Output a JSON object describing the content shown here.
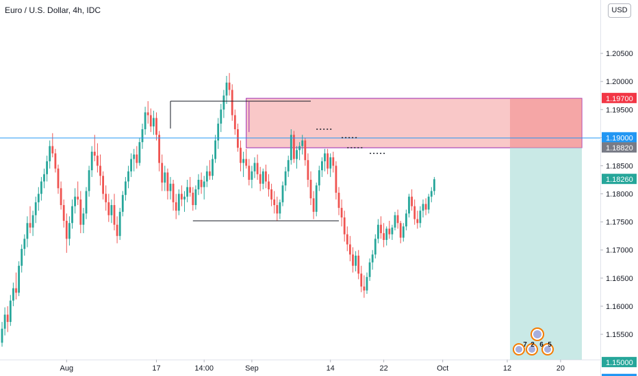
{
  "header": {
    "title": "Euro / U.S. Dollar, 4h, IDC",
    "currency": "USD"
  },
  "colors": {
    "up": "#26a69a",
    "down": "#ef5350",
    "supply_zone_fill": "#f7b3b3",
    "supply_zone_border": "#9c27b0",
    "target_zone_fill": "#b2dfdb",
    "level_line": "#2196f3",
    "last_price_badge": "#26a69a",
    "stop_badge": "#f23645",
    "entry_badge": "#787b86",
    "level_badge": "#2196f3"
  },
  "chart_data": {
    "type": "candlestick",
    "title": "Euro / U.S. Dollar, 4h, IDC",
    "ylim": [
      1.1505,
      1.2145
    ],
    "y_ticks": [
      "1.20500",
      "1.20000",
      "1.19500",
      "1.19000",
      "1.18500",
      "1.18000",
      "1.17500",
      "1.17000",
      "1.16500",
      "1.16000",
      "1.15500",
      "1.15000"
    ],
    "x_ticks": [
      {
        "label": "Aug",
        "index": 23
      },
      {
        "label": "17",
        "index": 55
      },
      {
        "label": "14:00",
        "index": 72
      },
      {
        "label": "Sep",
        "index": 89
      },
      {
        "label": "14",
        "index": 117
      },
      {
        "label": "22",
        "index": 136
      },
      {
        "label": "Oct",
        "index": 157
      },
      {
        "label": "12",
        "index": 180
      },
      {
        "label": "20",
        "index": 199
      }
    ],
    "candles_ohlc": [
      [
        1.1535,
        1.1572,
        1.1528,
        1.156
      ],
      [
        1.156,
        1.1598,
        1.1548,
        1.1585
      ],
      [
        1.1585,
        1.16,
        1.1554,
        1.1572
      ],
      [
        1.1572,
        1.162,
        1.1565,
        1.161
      ],
      [
        1.161,
        1.1642,
        1.16,
        1.1632
      ],
      [
        1.1632,
        1.166,
        1.1612,
        1.1624
      ],
      [
        1.1624,
        1.168,
        1.1618,
        1.1672
      ],
      [
        1.1672,
        1.171,
        1.166,
        1.1702
      ],
      [
        1.1702,
        1.1728,
        1.169,
        1.172
      ],
      [
        1.172,
        1.176,
        1.1705,
        1.1748
      ],
      [
        1.1748,
        1.1778,
        1.173,
        1.174
      ],
      [
        1.174,
        1.177,
        1.1725,
        1.1762
      ],
      [
        1.1762,
        1.1795,
        1.1748,
        1.1785
      ],
      [
        1.1785,
        1.1812,
        1.177,
        1.18
      ],
      [
        1.18,
        1.183,
        1.1788,
        1.1822
      ],
      [
        1.1822,
        1.1845,
        1.181,
        1.1835
      ],
      [
        1.1835,
        1.1868,
        1.1822,
        1.1858
      ],
      [
        1.1858,
        1.1895,
        1.1845,
        1.1885
      ],
      [
        1.1885,
        1.1908,
        1.1865,
        1.1872
      ],
      [
        1.1872,
        1.188,
        1.1838,
        1.1845
      ],
      [
        1.1845,
        1.1852,
        1.18,
        1.181
      ],
      [
        1.181,
        1.1822,
        1.1772,
        1.178
      ],
      [
        1.178,
        1.179,
        1.174,
        1.1752
      ],
      [
        1.1752,
        1.1765,
        1.1695,
        1.172
      ],
      [
        1.172,
        1.176,
        1.1708,
        1.1748
      ],
      [
        1.1748,
        1.179,
        1.1738,
        1.1778
      ],
      [
        1.1778,
        1.181,
        1.1765,
        1.1795
      ],
      [
        1.1795,
        1.1822,
        1.178,
        1.179
      ],
      [
        1.179,
        1.1805,
        1.173,
        1.1745
      ],
      [
        1.1745,
        1.1775,
        1.173,
        1.1765
      ],
      [
        1.1765,
        1.1812,
        1.1755,
        1.1805
      ],
      [
        1.1805,
        1.185,
        1.1795,
        1.1842
      ],
      [
        1.1842,
        1.1885,
        1.183,
        1.1875
      ],
      [
        1.1875,
        1.1905,
        1.1858,
        1.1868
      ],
      [
        1.1868,
        1.189,
        1.1838,
        1.185
      ],
      [
        1.185,
        1.187,
        1.1815,
        1.1832
      ],
      [
        1.1832,
        1.184,
        1.179,
        1.18
      ],
      [
        1.18,
        1.1815,
        1.177,
        1.1785
      ],
      [
        1.1785,
        1.18,
        1.175,
        1.1762
      ],
      [
        1.1762,
        1.179,
        1.1748,
        1.178
      ],
      [
        1.178,
        1.18,
        1.1735,
        1.1745
      ],
      [
        1.1745,
        1.176,
        1.1712,
        1.1725
      ],
      [
        1.1725,
        1.1775,
        1.1718,
        1.1768
      ],
      [
        1.1768,
        1.1805,
        1.176,
        1.1798
      ],
      [
        1.1798,
        1.183,
        1.1788,
        1.1822
      ],
      [
        1.1822,
        1.185,
        1.181,
        1.184
      ],
      [
        1.184,
        1.1872,
        1.183,
        1.1862
      ],
      [
        1.1862,
        1.188,
        1.184,
        1.187
      ],
      [
        1.187,
        1.1885,
        1.1845,
        1.1855
      ],
      [
        1.1855,
        1.19,
        1.185,
        1.1892
      ],
      [
        1.1892,
        1.1925,
        1.188,
        1.1915
      ],
      [
        1.1915,
        1.1955,
        1.1905,
        1.1945
      ],
      [
        1.1945,
        1.1965,
        1.1925,
        1.194
      ],
      [
        1.194,
        1.1952,
        1.191,
        1.192
      ],
      [
        1.192,
        1.1948,
        1.1905,
        1.1935
      ],
      [
        1.1935,
        1.1945,
        1.1895,
        1.1905
      ],
      [
        1.1905,
        1.1912,
        1.184,
        1.1855
      ],
      [
        1.1855,
        1.187,
        1.1805,
        1.182
      ],
      [
        1.182,
        1.185,
        1.1805,
        1.1838
      ],
      [
        1.1838,
        1.1845,
        1.179,
        1.1805
      ],
      [
        1.1805,
        1.183,
        1.179,
        1.1818
      ],
      [
        1.1818,
        1.1825,
        1.177,
        1.1785
      ],
      [
        1.1785,
        1.18,
        1.1755,
        1.177
      ],
      [
        1.177,
        1.1808,
        1.1762,
        1.18
      ],
      [
        1.18,
        1.1815,
        1.1778,
        1.179
      ],
      [
        1.179,
        1.1805,
        1.1768,
        1.1795
      ],
      [
        1.1795,
        1.1825,
        1.1785,
        1.1812
      ],
      [
        1.1812,
        1.183,
        1.1795,
        1.1802
      ],
      [
        1.1802,
        1.1812,
        1.177,
        1.178
      ],
      [
        1.178,
        1.1815,
        1.1772,
        1.1808
      ],
      [
        1.1808,
        1.1835,
        1.1798,
        1.1825
      ],
      [
        1.1825,
        1.1838,
        1.18,
        1.1812
      ],
      [
        1.1812,
        1.1832,
        1.179,
        1.1822
      ],
      [
        1.1822,
        1.185,
        1.1812,
        1.184
      ],
      [
        1.184,
        1.186,
        1.1825,
        1.1832
      ],
      [
        1.1832,
        1.187,
        1.1825,
        1.1862
      ],
      [
        1.1862,
        1.1905,
        1.1855,
        1.1895
      ],
      [
        1.1895,
        1.1935,
        1.188,
        1.1925
      ],
      [
        1.1925,
        1.196,
        1.191,
        1.195
      ],
      [
        1.195,
        1.1985,
        1.1935,
        1.1975
      ],
      [
        1.1975,
        1.201,
        1.196,
        1.1998
      ],
      [
        1.1998,
        1.2015,
        1.1975,
        1.1985
      ],
      [
        1.1985,
        1.1995,
        1.193,
        1.194
      ],
      [
        1.194,
        1.195,
        1.1905,
        1.1915
      ],
      [
        1.1915,
        1.1925,
        1.1875,
        1.1882
      ],
      [
        1.1882,
        1.1895,
        1.184,
        1.1855
      ],
      [
        1.1855,
        1.1875,
        1.183,
        1.1862
      ],
      [
        1.1862,
        1.188,
        1.1845,
        1.185
      ],
      [
        1.185,
        1.1862,
        1.1815,
        1.1825
      ],
      [
        1.1825,
        1.185,
        1.181,
        1.184
      ],
      [
        1.184,
        1.1865,
        1.1828,
        1.1855
      ],
      [
        1.1855,
        1.187,
        1.1825,
        1.1835
      ],
      [
        1.1835,
        1.1848,
        1.1805,
        1.1818
      ],
      [
        1.1818,
        1.1845,
        1.1808,
        1.184
      ],
      [
        1.184,
        1.1852,
        1.181,
        1.1822
      ],
      [
        1.1822,
        1.1835,
        1.1795,
        1.1808
      ],
      [
        1.1808,
        1.1818,
        1.1778,
        1.179
      ],
      [
        1.179,
        1.1805,
        1.1765,
        1.178
      ],
      [
        1.178,
        1.1795,
        1.1752,
        1.1765
      ],
      [
        1.1765,
        1.179,
        1.1755,
        1.1785
      ],
      [
        1.1785,
        1.1822,
        1.1778,
        1.1815
      ],
      [
        1.1815,
        1.1848,
        1.1805,
        1.184
      ],
      [
        1.184,
        1.1868,
        1.183,
        1.186
      ],
      [
        1.186,
        1.1915,
        1.1852,
        1.1905
      ],
      [
        1.1905,
        1.1912,
        1.1855,
        1.1862
      ],
      [
        1.1862,
        1.1885,
        1.1845,
        1.1878
      ],
      [
        1.1878,
        1.1892,
        1.186,
        1.1885
      ],
      [
        1.1885,
        1.1905,
        1.187,
        1.1895
      ],
      [
        1.1895,
        1.19,
        1.185,
        1.186
      ],
      [
        1.186,
        1.1872,
        1.1812,
        1.1825
      ],
      [
        1.1825,
        1.184,
        1.178,
        1.1792
      ],
      [
        1.1792,
        1.1805,
        1.1755,
        1.1768
      ],
      [
        1.1768,
        1.182,
        1.176,
        1.1815
      ],
      [
        1.1815,
        1.185,
        1.1805,
        1.1842
      ],
      [
        1.1842,
        1.1865,
        1.183,
        1.1858
      ],
      [
        1.1858,
        1.188,
        1.184,
        1.1872
      ],
      [
        1.1872,
        1.188,
        1.1835,
        1.1845
      ],
      [
        1.1845,
        1.1872,
        1.183,
        1.1865
      ],
      [
        1.1865,
        1.1875,
        1.1838,
        1.185
      ],
      [
        1.185,
        1.1858,
        1.179,
        1.1802
      ],
      [
        1.1802,
        1.1812,
        1.1762,
        1.1775
      ],
      [
        1.1775,
        1.179,
        1.1742,
        1.1758
      ],
      [
        1.1758,
        1.177,
        1.1715,
        1.1728
      ],
      [
        1.1728,
        1.1742,
        1.1698,
        1.171
      ],
      [
        1.171,
        1.1725,
        1.168,
        1.1692
      ],
      [
        1.1692,
        1.1705,
        1.166,
        1.1672
      ],
      [
        1.1672,
        1.1698,
        1.1662,
        1.169
      ],
      [
        1.169,
        1.17,
        1.1648,
        1.1658
      ],
      [
        1.1658,
        1.1672,
        1.1625,
        1.1635
      ],
      [
        1.1635,
        1.1655,
        1.1615,
        1.1628
      ],
      [
        1.1628,
        1.166,
        1.1622,
        1.1652
      ],
      [
        1.1652,
        1.1685,
        1.1645,
        1.1678
      ],
      [
        1.1678,
        1.17,
        1.1665,
        1.1692
      ],
      [
        1.1692,
        1.1728,
        1.1685,
        1.172
      ],
      [
        1.172,
        1.1755,
        1.1712,
        1.1745
      ],
      [
        1.1745,
        1.176,
        1.172,
        1.173
      ],
      [
        1.173,
        1.1748,
        1.1705,
        1.1718
      ],
      [
        1.1718,
        1.1742,
        1.1708,
        1.1738
      ],
      [
        1.1738,
        1.1752,
        1.172,
        1.1728
      ],
      [
        1.1728,
        1.1745,
        1.1718,
        1.174
      ],
      [
        1.174,
        1.1768,
        1.1735,
        1.1762
      ],
      [
        1.1762,
        1.1772,
        1.1738,
        1.1748
      ],
      [
        1.1748,
        1.1752,
        1.1712,
        1.1722
      ],
      [
        1.1722,
        1.1748,
        1.1715,
        1.1742
      ],
      [
        1.1742,
        1.1772,
        1.1735,
        1.1765
      ],
      [
        1.1765,
        1.18,
        1.1758,
        1.1795
      ],
      [
        1.1795,
        1.1808,
        1.177,
        1.1778
      ],
      [
        1.1778,
        1.179,
        1.1745,
        1.1755
      ],
      [
        1.1755,
        1.177,
        1.1738,
        1.1748
      ],
      [
        1.1748,
        1.1778,
        1.174,
        1.177
      ],
      [
        1.177,
        1.179,
        1.1758,
        1.1782
      ],
      [
        1.1782,
        1.1792,
        1.1762,
        1.1772
      ],
      [
        1.1772,
        1.18,
        1.1765,
        1.1795
      ],
      [
        1.1795,
        1.1812,
        1.1785,
        1.1805
      ],
      [
        1.1805,
        1.183,
        1.1798,
        1.1826
      ]
    ],
    "overlays": {
      "consolidation_box": {
        "top": 1.1965,
        "bottom": 1.1752,
        "from_index": 55,
        "to_index": 117
      },
      "supply_zone": {
        "top": 1.197,
        "bottom": 1.1882
      },
      "target_zone": {
        "top": 1.1882,
        "bottom": 1.15
      },
      "horizontal_levels": [
        1.19,
        1.15
      ]
    },
    "price_labels": [
      {
        "value": 1.197,
        "label": "1.19700",
        "kind": "stop"
      },
      {
        "value": 1.19,
        "label": "1.19000",
        "kind": "level"
      },
      {
        "value": 1.1882,
        "label": "1.18820",
        "kind": "entry"
      },
      {
        "value": 1.1826,
        "label": "1.18260",
        "kind": "last"
      },
      {
        "value": 1.15,
        "label": "1.15000",
        "kind": "target"
      },
      {
        "value": 1.1487,
        "label": "1.15000",
        "kind": "level"
      }
    ]
  },
  "events": {
    "digits": [
      "7",
      "2",
      "6",
      "5"
    ]
  }
}
